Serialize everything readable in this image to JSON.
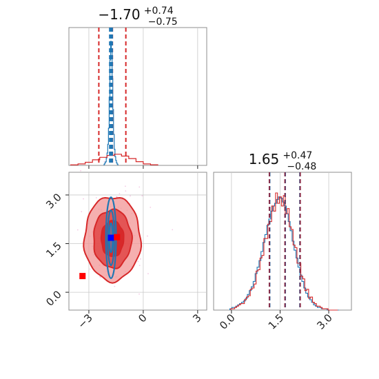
{
  "chart_data": [
    {
      "type": "histogram",
      "panel": "marginal-x",
      "title_main": "−1.70",
      "title_sup": "+0.74",
      "title_sub": "−0.75",
      "xlim": [
        -4.1,
        3.5
      ],
      "grid": true,
      "quantiles": {
        "red": [
          -2.45,
          -1.7,
          -0.96
        ],
        "blue": [
          -1.85,
          -1.78,
          -1.71
        ]
      },
      "series": [
        {
          "color": "#1f77b4",
          "bins": [
            -2.16,
            -2.12,
            -2.08,
            -2.04,
            -2.0,
            -1.96,
            -1.92,
            -1.88,
            -1.84,
            -1.8,
            -1.76,
            -1.72,
            -1.68,
            -1.64,
            -1.6,
            -1.56,
            -1.52,
            -1.48,
            -1.44,
            -1.4
          ],
          "counts": [
            0.01,
            0.02,
            0.03,
            0.06,
            0.1,
            0.17,
            0.3,
            0.55,
            0.85,
            1.0,
            0.92,
            0.7,
            0.45,
            0.25,
            0.13,
            0.07,
            0.04,
            0.02,
            0.01
          ]
        },
        {
          "color": "#d62728",
          "bins": [
            -4.0,
            -3.6,
            -3.2,
            -2.8,
            -2.4,
            -2.0,
            -1.6,
            -1.2,
            -0.8,
            -0.4,
            0.0,
            0.4,
            0.8
          ],
          "counts": [
            0.004,
            0.012,
            0.025,
            0.045,
            0.065,
            0.08,
            0.09,
            0.075,
            0.055,
            0.03,
            0.012,
            0.005
          ]
        }
      ]
    },
    {
      "type": "contour",
      "panel": "joint",
      "xlim": [
        -4.1,
        3.5
      ],
      "ylim": [
        -0.55,
        3.7
      ],
      "xticks": [
        "−3",
        "0",
        "3"
      ],
      "yticks": [
        "0.0",
        "1.5",
        "3.0"
      ],
      "xtick_values": [
        -3,
        0,
        3
      ],
      "ytick_values": [
        0.0,
        1.5,
        3.0
      ],
      "grid": true,
      "red_center": [
        -1.7,
        1.65
      ],
      "red_levels": [
        {
          "sx": 1.55,
          "sy": 1.3,
          "fill": "#f29494",
          "opacity": 0.75
        },
        {
          "sx": 1.05,
          "sy": 0.9,
          "fill": "#e04545",
          "opacity": 0.85
        },
        {
          "sx": 0.62,
          "sy": 0.55,
          "fill": "#d62728",
          "opacity": 0.95
        }
      ],
      "blue_center": [
        -1.78,
        1.68
      ],
      "blue_levels": [
        {
          "sx": 0.28,
          "sy": 1.25
        },
        {
          "sx": 0.18,
          "sy": 0.85
        },
        {
          "sx": 0.1,
          "sy": 0.45
        }
      ],
      "markers": [
        {
          "x": -1.78,
          "y": 1.68,
          "color": "#0000ff"
        },
        {
          "x": -1.45,
          "y": 1.7,
          "color": "#ff0000"
        },
        {
          "x": -3.35,
          "y": 0.5,
          "color": "#ff0000"
        }
      ]
    },
    {
      "type": "histogram",
      "panel": "marginal-y",
      "title_main": "1.65",
      "title_sup": "+0.47",
      "title_sub": "−0.48",
      "xlim": [
        -0.55,
        3.7
      ],
      "xticks": [
        "0.0",
        "1.5",
        "3.0"
      ],
      "xtick_values": [
        0.0,
        1.5,
        3.0
      ],
      "grid": true,
      "quantiles": {
        "red": [
          1.17,
          1.65,
          2.12
        ],
        "blue": [
          1.18,
          1.66,
          2.11
        ]
      },
      "series": [
        {
          "color": "#1f77b4",
          "bins_start": -0.05,
          "bin_width": 0.06,
          "counts": [
            0.01,
            0.02,
            0.02,
            0.03,
            0.04,
            0.05,
            0.06,
            0.07,
            0.09,
            0.12,
            0.15,
            0.18,
            0.22,
            0.28,
            0.33,
            0.38,
            0.45,
            0.52,
            0.58,
            0.65,
            0.7,
            0.76,
            0.8,
            0.82,
            0.85,
            0.87,
            0.86,
            0.83,
            0.8,
            0.74,
            0.68,
            0.61,
            0.53,
            0.46,
            0.4,
            0.33,
            0.27,
            0.22,
            0.17,
            0.13,
            0.1,
            0.08,
            0.06,
            0.04,
            0.03,
            0.02,
            0.02,
            0.01,
            0.01,
            0.01,
            0.0,
            0.0,
            0.0,
            0.0,
            0.0,
            0.0
          ]
        },
        {
          "color": "#d62728",
          "bins_start": -0.02,
          "bin_width": 0.06,
          "counts": [
            0.01,
            0.01,
            0.02,
            0.03,
            0.04,
            0.05,
            0.05,
            0.08,
            0.1,
            0.11,
            0.16,
            0.17,
            0.2,
            0.3,
            0.31,
            0.4,
            0.42,
            0.55,
            0.55,
            0.66,
            0.68,
            0.8,
            0.76,
            0.9,
            0.82,
            0.87,
            0.8,
            0.88,
            0.74,
            0.78,
            0.64,
            0.62,
            0.5,
            0.48,
            0.36,
            0.36,
            0.26,
            0.24,
            0.15,
            0.16,
            0.09,
            0.1,
            0.06,
            0.05,
            0.03,
            0.03,
            0.02,
            0.01,
            0.01,
            0.01,
            0.0,
            0.0,
            0.0,
            0.0,
            0.0
          ]
        }
      ]
    }
  ]
}
